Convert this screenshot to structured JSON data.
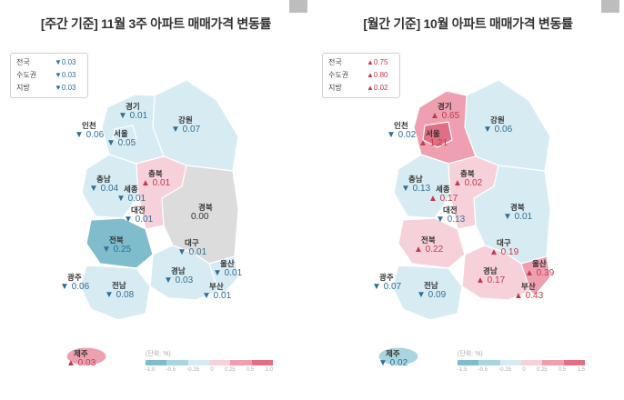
{
  "colors": {
    "down_strong": "#7fbccc",
    "down_mid": "#a9d5e0",
    "down_light": "#d7ecf2",
    "flat": "#dcdcdc",
    "up_light": "#f6d1d9",
    "up_mid": "#ee9fb0",
    "up_strong": "#e06f86",
    "down_text": "#2f6f97",
    "up_text": "#c2394f"
  },
  "weekly": {
    "title": "[주간 기준] 11월 3주 아파트 매매가격 변동률",
    "summary": [
      {
        "name": "전국",
        "value": "▼0.03"
      },
      {
        "name": "수도권",
        "value": "▼0.03"
      },
      {
        "name": "지방",
        "value": "▼0.03"
      }
    ],
    "regions": [
      {
        "name": "경기",
        "value": "▼ 0.01",
        "dir": "down"
      },
      {
        "name": "강원",
        "value": "▼ 0.07",
        "dir": "down"
      },
      {
        "name": "인천",
        "value": "▼ 0.06",
        "dir": "down"
      },
      {
        "name": "서울",
        "value": "▼ 0.05",
        "dir": "down"
      },
      {
        "name": "충북",
        "value": "▲ 0.01",
        "dir": "up"
      },
      {
        "name": "충남",
        "value": "▼ 0.04",
        "dir": "down"
      },
      {
        "name": "세종",
        "value": "▼ 0.01",
        "dir": "down"
      },
      {
        "name": "대전",
        "value": "▼ 0.01",
        "dir": "down"
      },
      {
        "name": "경북",
        "value": "0.00",
        "dir": "flat"
      },
      {
        "name": "전북",
        "value": "▼ 0.25",
        "dir": "down"
      },
      {
        "name": "대구",
        "value": "▼ 0.01",
        "dir": "down"
      },
      {
        "name": "울산",
        "value": "▼ 0.01",
        "dir": "down"
      },
      {
        "name": "광주",
        "value": "▼ 0.06",
        "dir": "down"
      },
      {
        "name": "전남",
        "value": "▼ 0.08",
        "dir": "down"
      },
      {
        "name": "경남",
        "value": "▼ 0.03",
        "dir": "down"
      },
      {
        "name": "부산",
        "value": "▼ 0.01",
        "dir": "down"
      },
      {
        "name": "제주",
        "value": "▲ 0.03",
        "dir": "up"
      }
    ],
    "legend": {
      "unit": "(단위: %)",
      "ticks": [
        "-1.0",
        "-0.5",
        "-0.25",
        "0",
        "0.25",
        "0.5",
        "1.0"
      ]
    }
  },
  "monthly": {
    "title": "[월간 기준] 10월 아파트 매매가격 변동률",
    "summary": [
      {
        "name": "전국",
        "value": "▲0.75"
      },
      {
        "name": "수도권",
        "value": "▲0.80"
      },
      {
        "name": "지방",
        "value": "▲0.02"
      }
    ],
    "regions": [
      {
        "name": "경기",
        "value": "▲ 0.65",
        "dir": "up"
      },
      {
        "name": "강원",
        "value": "▼ 0.06",
        "dir": "down"
      },
      {
        "name": "인천",
        "value": "▼ 0.02",
        "dir": "down"
      },
      {
        "name": "서울",
        "value": "▲ 1.21",
        "dir": "up"
      },
      {
        "name": "충북",
        "value": "▲ 0.02",
        "dir": "up"
      },
      {
        "name": "충남",
        "value": "▼ 0.13",
        "dir": "down"
      },
      {
        "name": "세종",
        "value": "▲ 0.17",
        "dir": "up"
      },
      {
        "name": "대전",
        "value": "▼ 0.13",
        "dir": "down"
      },
      {
        "name": "경북",
        "value": "▼ 0.01",
        "dir": "down"
      },
      {
        "name": "전북",
        "value": "▲ 0.22",
        "dir": "up"
      },
      {
        "name": "대구",
        "value": "▲ 0.19",
        "dir": "up"
      },
      {
        "name": "울산",
        "value": "▲ 0.39",
        "dir": "up"
      },
      {
        "name": "광주",
        "value": "▼ 0.07",
        "dir": "down"
      },
      {
        "name": "전남",
        "value": "▼ 0.09",
        "dir": "down"
      },
      {
        "name": "경남",
        "value": "▲ 0.17",
        "dir": "up"
      },
      {
        "name": "부산",
        "value": "▲ 0.43",
        "dir": "up"
      },
      {
        "name": "제주",
        "value": "▼ 0.02",
        "dir": "down"
      }
    ],
    "legend": {
      "unit": "(단위: %)",
      "ticks": [
        "-1.5",
        "-0.5",
        "-0.25",
        "0",
        "0.25",
        "0.5",
        "1.5"
      ]
    }
  }
}
